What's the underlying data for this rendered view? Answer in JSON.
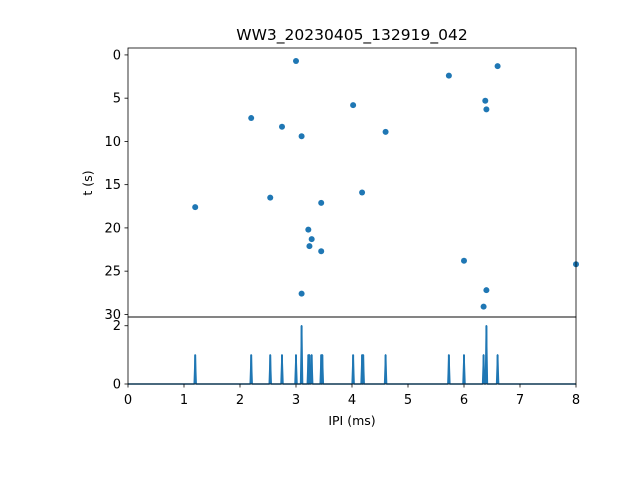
{
  "chart_data": [
    {
      "type": "scatter",
      "title": "WW3_20230405_132919_042",
      "xlabel": "",
      "ylabel": "t (s)",
      "xlim": [
        0,
        8
      ],
      "ylim": [
        30.3,
        -0.8
      ],
      "y_inverted": true,
      "yticks": [
        0,
        5,
        10,
        15,
        20,
        25,
        30
      ],
      "marker_color": "#1f77b4",
      "points": [
        {
          "x": 3.0,
          "y": 0.7
        },
        {
          "x": 5.73,
          "y": 2.4
        },
        {
          "x": 6.6,
          "y": 1.3
        },
        {
          "x": 6.38,
          "y": 5.3
        },
        {
          "x": 6.4,
          "y": 6.3
        },
        {
          "x": 4.02,
          "y": 5.8
        },
        {
          "x": 2.2,
          "y": 7.3
        },
        {
          "x": 2.75,
          "y": 8.3
        },
        {
          "x": 3.1,
          "y": 9.4
        },
        {
          "x": 4.6,
          "y": 8.9
        },
        {
          "x": 4.18,
          "y": 15.9
        },
        {
          "x": 2.54,
          "y": 16.5
        },
        {
          "x": 3.45,
          "y": 17.1
        },
        {
          "x": 1.2,
          "y": 17.6
        },
        {
          "x": 3.22,
          "y": 20.2
        },
        {
          "x": 3.28,
          "y": 21.3
        },
        {
          "x": 3.24,
          "y": 22.1
        },
        {
          "x": 3.45,
          "y": 22.7
        },
        {
          "x": 6.0,
          "y": 23.8
        },
        {
          "x": 8.0,
          "y": 24.2
        },
        {
          "x": 6.4,
          "y": 27.2
        },
        {
          "x": 3.1,
          "y": 27.6
        },
        {
          "x": 6.35,
          "y": 29.1
        }
      ]
    },
    {
      "type": "line",
      "xlabel": "IPI (ms)",
      "ylabel": "",
      "xlim": [
        0,
        8
      ],
      "ylim": [
        0,
        2.3
      ],
      "xticks": [
        0,
        1,
        2,
        3,
        4,
        5,
        6,
        7,
        8
      ],
      "yticks": [
        0,
        2
      ],
      "line_color": "#1f77b4",
      "peaks": [
        {
          "x": 1.2,
          "y": 1
        },
        {
          "x": 2.2,
          "y": 1
        },
        {
          "x": 2.54,
          "y": 1
        },
        {
          "x": 2.75,
          "y": 1
        },
        {
          "x": 3.0,
          "y": 1
        },
        {
          "x": 3.1,
          "y": 2
        },
        {
          "x": 3.22,
          "y": 1
        },
        {
          "x": 3.24,
          "y": 1
        },
        {
          "x": 3.28,
          "y": 1
        },
        {
          "x": 3.45,
          "y": 1
        },
        {
          "x": 3.47,
          "y": 1
        },
        {
          "x": 4.02,
          "y": 1
        },
        {
          "x": 4.18,
          "y": 1
        },
        {
          "x": 4.2,
          "y": 1
        },
        {
          "x": 4.6,
          "y": 1
        },
        {
          "x": 5.73,
          "y": 1
        },
        {
          "x": 6.0,
          "y": 1
        },
        {
          "x": 6.35,
          "y": 1
        },
        {
          "x": 6.4,
          "y": 2
        },
        {
          "x": 6.6,
          "y": 1
        }
      ]
    }
  ]
}
